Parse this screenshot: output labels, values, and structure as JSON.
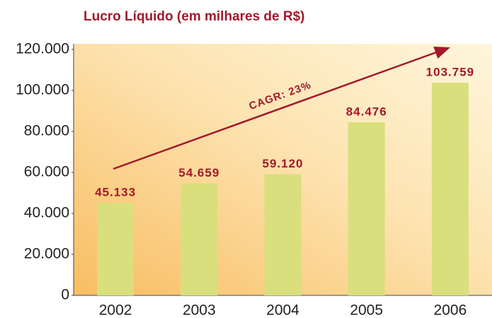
{
  "chart_data": {
    "type": "bar",
    "title": "Lucro Líquido (em milhares de R$)",
    "categories": [
      "2002",
      "2003",
      "2004",
      "2005",
      "2006"
    ],
    "values": [
      45133,
      54659,
      59120,
      84476,
      103759
    ],
    "value_labels": [
      "45.133",
      "54.659",
      "59.120",
      "84.476",
      "103.759"
    ],
    "color": "#d9df7c",
    "ylim": [
      0,
      120000
    ],
    "yticks": [
      0,
      {
        "value": 20000,
        "label": "20.000"
      },
      {
        "value": 40000,
        "label": "40.000"
      },
      {
        "value": 60000,
        "label": "60.000"
      },
      {
        "value": 80000,
        "label": "80.000"
      },
      {
        "value": 100000,
        "label": "100.000"
      },
      {
        "value": 120000,
        "label": "120.000"
      }
    ],
    "grid": false,
    "annotation": "CAGR: 23%"
  }
}
